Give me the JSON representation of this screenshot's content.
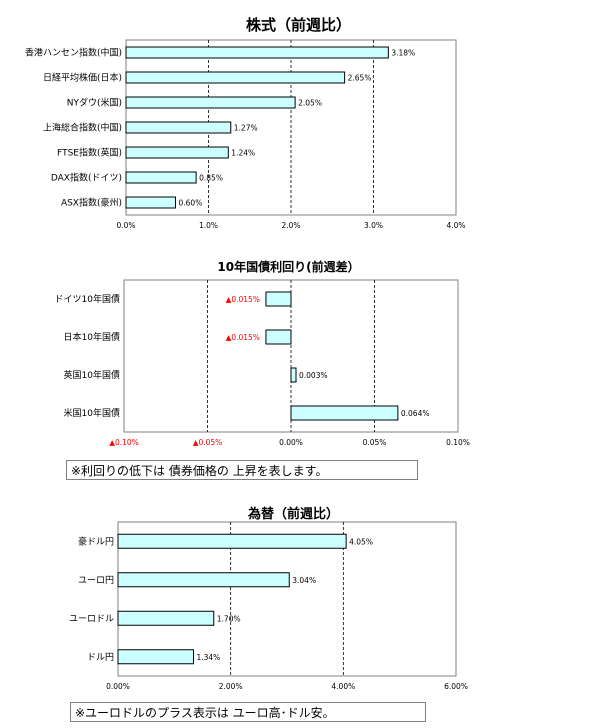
{
  "chart_data": [
    {
      "type": "bar",
      "orientation": "horizontal",
      "title": "株式（前週比）",
      "categories": [
        "香港ハンセン指数(中国)",
        "日経平均株価(日本)",
        "NYダウ(米国)",
        "上海総合指数(中国)",
        "FTSE指数(英国)",
        "DAX指数(ドイツ)",
        "ASX指数(豪州)"
      ],
      "values": [
        3.18,
        2.65,
        2.05,
        1.27,
        1.24,
        0.85,
        0.6
      ],
      "value_labels": [
        "3.18%",
        "2.65%",
        "2.05%",
        "1.27%",
        "1.24%",
        "0.85%",
        "0.60%"
      ],
      "xlim": [
        0,
        4
      ],
      "xticks": [
        "0.0%",
        "1.0%",
        "2.0%",
        "3.0%",
        "4.0%"
      ],
      "grid": "vertical dashed",
      "bar_color": "#ccffff"
    },
    {
      "type": "bar",
      "orientation": "horizontal",
      "title": "10年国債利回り(前週差）",
      "categories": [
        "ドイツ10年国債",
        "日本10年国債",
        "英国10年国債",
        "米国10年国債"
      ],
      "values": [
        -0.015,
        -0.015,
        0.003,
        0.064
      ],
      "value_labels": [
        "▲0.015%",
        "▲0.015%",
        "0.003%",
        "0.064%"
      ],
      "xlim": [
        -0.1,
        0.1
      ],
      "xticks": [
        "▲0.10%",
        "▲0.05%",
        "0.00%",
        "0.05%",
        "0.10%"
      ],
      "grid": "vertical dashed",
      "bar_color": "#ccffff",
      "negative_label_color": "#ff0000",
      "note": "※利回りの低下は 債券価格の 上昇を表します。"
    },
    {
      "type": "bar",
      "orientation": "horizontal",
      "title": "為替（前週比）",
      "categories": [
        "豪ドル円",
        "ユーロ円",
        "ユーロドル",
        "ドル円"
      ],
      "values": [
        4.05,
        3.04,
        1.7,
        1.34
      ],
      "value_labels": [
        "4.05%",
        "3.04%",
        "1.70%",
        "1.34%"
      ],
      "xlim": [
        0,
        6
      ],
      "xticks": [
        "0.00%",
        "2.00%",
        "4.00%",
        "6.00%"
      ],
      "grid": "vertical dashed",
      "bar_color": "#ccffff",
      "note": "※ユーロドルのプラス表示は ユーロ高･ドル安。"
    }
  ]
}
